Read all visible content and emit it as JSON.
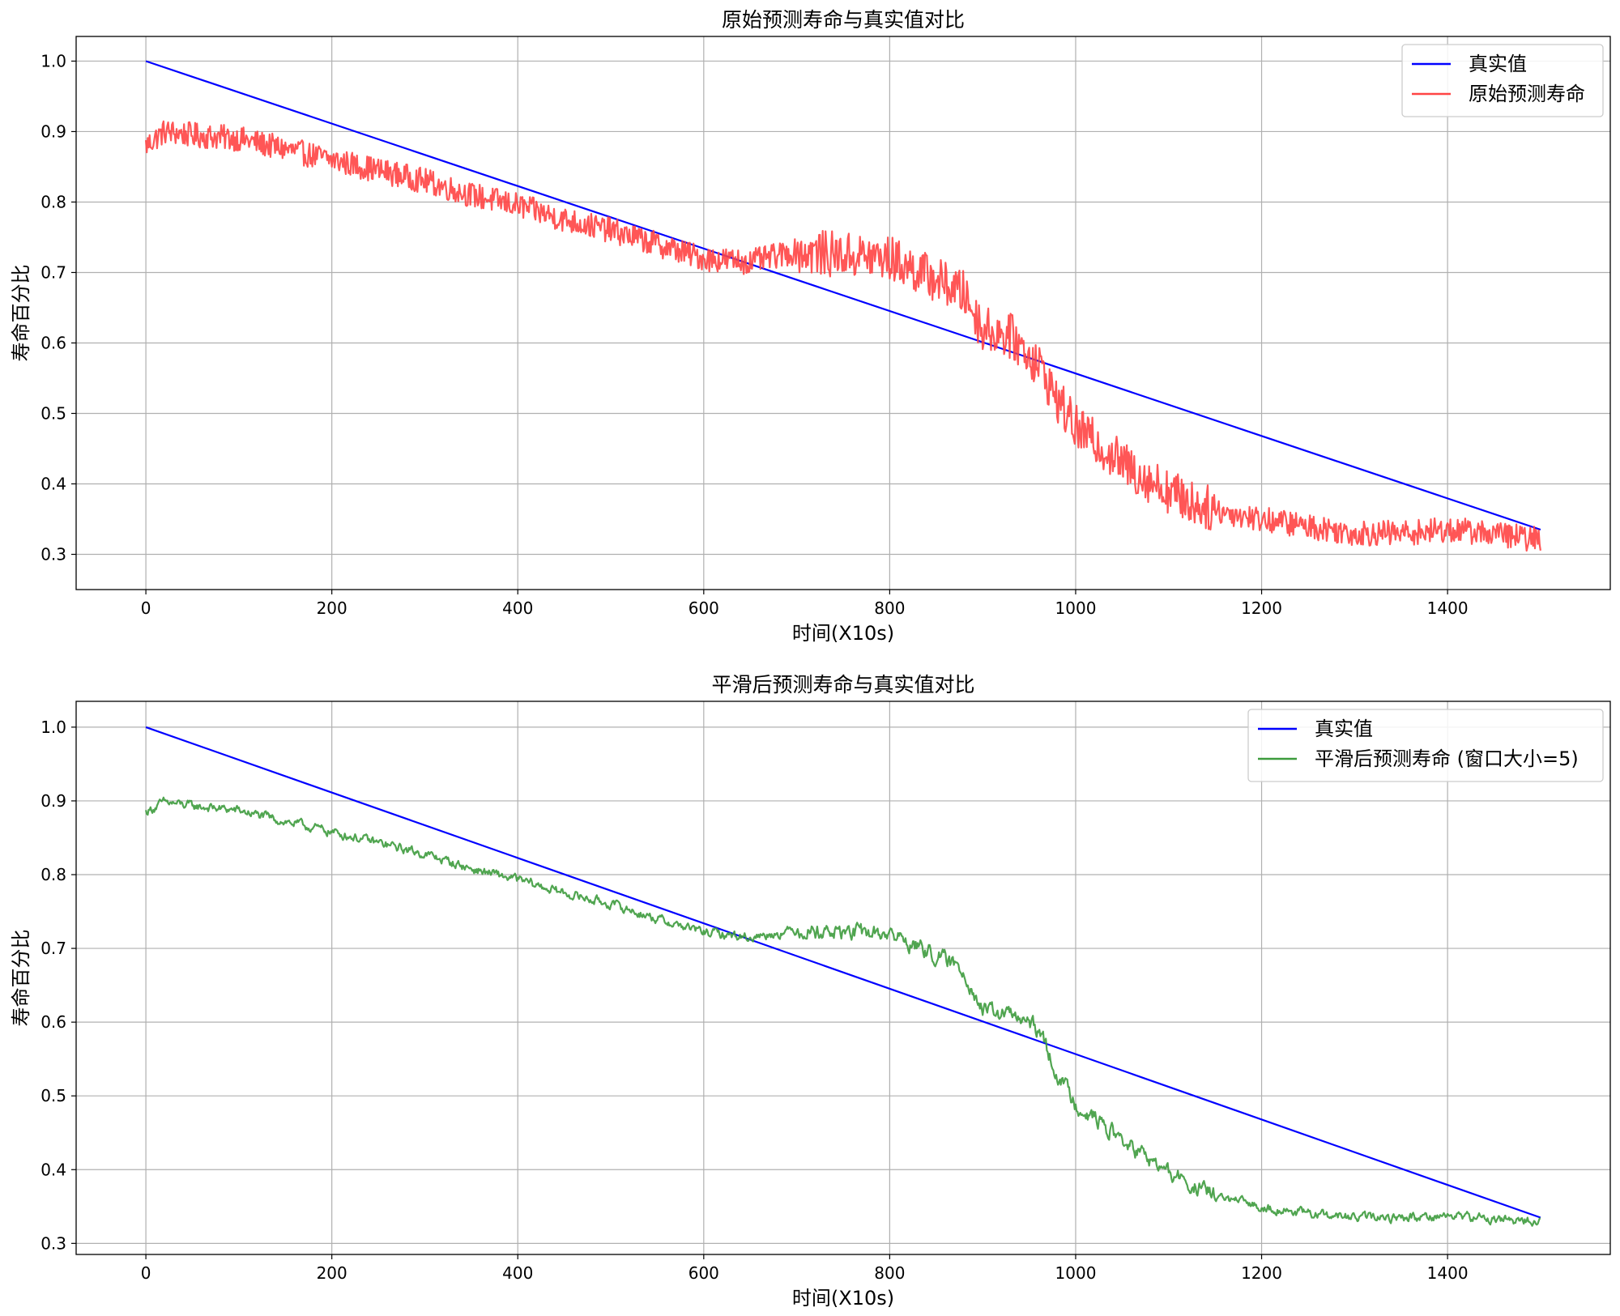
{
  "chart_data": [
    {
      "type": "line",
      "title": "原始预测寿命与真实值对比",
      "xlabel": "时间(X10s)",
      "ylabel": "寿命百分比",
      "xlim": [
        -75,
        1575
      ],
      "ylim": [
        0.25,
        1.035
      ],
      "xticks": [
        0,
        200,
        400,
        600,
        800,
        1000,
        1200,
        1400
      ],
      "yticks": [
        0.3,
        0.4,
        0.5,
        0.6,
        0.7,
        0.8,
        0.9,
        1.0
      ],
      "xtick_labels": [
        "0",
        "200",
        "400",
        "600",
        "800",
        "1000",
        "1200",
        "1400"
      ],
      "ytick_labels": [
        "0.3",
        "0.4",
        "0.5",
        "0.6",
        "0.7",
        "0.8",
        "0.9",
        "1.0"
      ],
      "grid": true,
      "legend_position": "top-right",
      "series": [
        {
          "name": "真实值",
          "color": "#0000ff",
          "x": [
            0,
            1500
          ],
          "y": [
            1.0,
            0.335
          ]
        },
        {
          "name": "原始预测寿命",
          "color": "#ff4444",
          "x": [
            0,
            20,
            50,
            100,
            150,
            200,
            250,
            300,
            350,
            400,
            450,
            500,
            550,
            600,
            650,
            700,
            750,
            800,
            850,
            880,
            900,
            930,
            960,
            980,
            1000,
            1030,
            1060,
            1100,
            1130,
            1160,
            1200,
            1250,
            1300,
            1350,
            1400,
            1450,
            1500
          ],
          "y": [
            0.88,
            0.9,
            0.895,
            0.89,
            0.875,
            0.86,
            0.845,
            0.83,
            0.81,
            0.795,
            0.775,
            0.76,
            0.74,
            0.72,
            0.715,
            0.73,
            0.725,
            0.72,
            0.69,
            0.67,
            0.62,
            0.61,
            0.57,
            0.52,
            0.48,
            0.45,
            0.42,
            0.39,
            0.37,
            0.36,
            0.35,
            0.34,
            0.33,
            0.33,
            0.335,
            0.33,
            0.32
          ],
          "noise": 0.018
        }
      ]
    },
    {
      "type": "line",
      "title": "平滑后预测寿命与真实值对比",
      "xlabel": "时间(X10s)",
      "ylabel": "寿命百分比",
      "xlim": [
        -75,
        1575
      ],
      "ylim": [
        0.285,
        1.035
      ],
      "xticks": [
        0,
        200,
        400,
        600,
        800,
        1000,
        1200,
        1400
      ],
      "yticks": [
        0.3,
        0.4,
        0.5,
        0.6,
        0.7,
        0.8,
        0.9,
        1.0
      ],
      "xtick_labels": [
        "0",
        "200",
        "400",
        "600",
        "800",
        "1000",
        "1200",
        "1400"
      ],
      "ytick_labels": [
        "0.3",
        "0.4",
        "0.5",
        "0.6",
        "0.7",
        "0.8",
        "0.9",
        "1.0"
      ],
      "grid": true,
      "legend_position": "top-right",
      "series": [
        {
          "name": "真实值",
          "color": "#0000ff",
          "x": [
            0,
            1500
          ],
          "y": [
            1.0,
            0.335
          ]
        },
        {
          "name": "平滑后预测寿命 (窗口大小=5)",
          "color": "#3d9b3d",
          "x": [
            0,
            20,
            50,
            100,
            150,
            200,
            250,
            300,
            350,
            400,
            450,
            500,
            550,
            600,
            650,
            700,
            750,
            800,
            850,
            880,
            900,
            930,
            960,
            980,
            1000,
            1030,
            1060,
            1100,
            1130,
            1160,
            1200,
            1250,
            1300,
            1350,
            1400,
            1450,
            1500
          ],
          "y": [
            0.885,
            0.898,
            0.893,
            0.887,
            0.872,
            0.858,
            0.843,
            0.828,
            0.808,
            0.793,
            0.775,
            0.76,
            0.74,
            0.722,
            0.715,
            0.725,
            0.722,
            0.72,
            0.69,
            0.67,
            0.615,
            0.61,
            0.59,
            0.53,
            0.49,
            0.46,
            0.43,
            0.395,
            0.375,
            0.36,
            0.35,
            0.34,
            0.335,
            0.335,
            0.338,
            0.333,
            0.33
          ],
          "noise": 0.006
        }
      ]
    }
  ]
}
